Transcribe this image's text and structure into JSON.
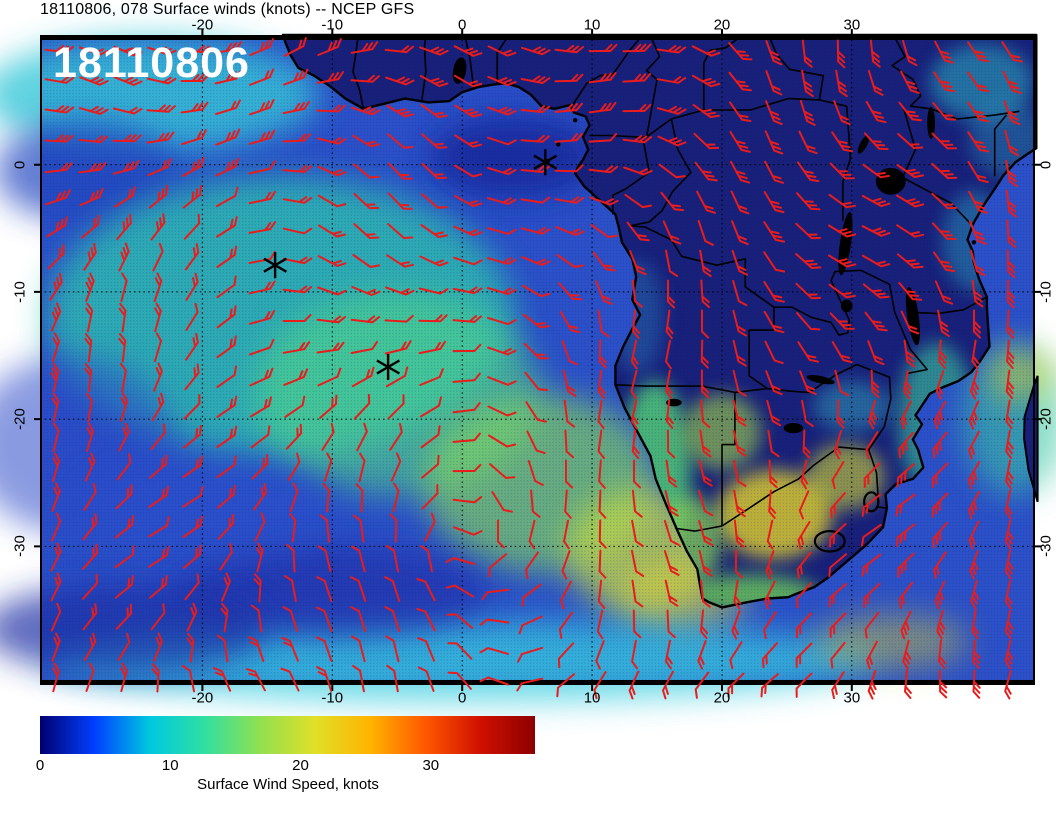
{
  "header": {
    "title": "18110806, 078 Surface winds (knots) -- NCEP GFS"
  },
  "map": {
    "timestamp_label": "18110806",
    "lon_tick_labels": [
      "-20",
      "-10",
      "0",
      "10",
      "20",
      "30"
    ],
    "lon_tick_values": [
      -20,
      -10,
      0,
      10,
      20,
      30
    ],
    "lat_tick_labels": [
      "0",
      "-10",
      "-20",
      "-30"
    ],
    "lat_tick_values": [
      0,
      -10,
      -20,
      -30
    ],
    "lon_range": [
      -32.5,
      44.1
    ],
    "lat_range": [
      -40.9,
      10.2
    ],
    "station_markers": [
      {
        "name": "marker-1",
        "lon": 6.4,
        "lat": 0.2
      },
      {
        "name": "marker-2",
        "lon": -14.4,
        "lat": -7.9
      },
      {
        "name": "marker-3",
        "lon": -5.7,
        "lat": -15.9
      }
    ],
    "wind_barb_color": "#e81c1c",
    "coastline_color": "#000000",
    "land_low_wind_color": "#18207a",
    "ocean_base_color": "#2b50c8"
  },
  "colorbar": {
    "label": "Surface Wind Speed, knots",
    "tick_labels": [
      "0",
      "10",
      "20",
      "30"
    ],
    "tick_values": [
      0,
      10,
      20,
      30
    ],
    "min": 0,
    "max": 38,
    "gradient_colors": [
      "#000070",
      "#0040ff",
      "#00c8e0",
      "#30e0a0",
      "#90e050",
      "#e0e028",
      "#ffb400",
      "#ff5800",
      "#d01000",
      "#8c0000"
    ]
  }
}
